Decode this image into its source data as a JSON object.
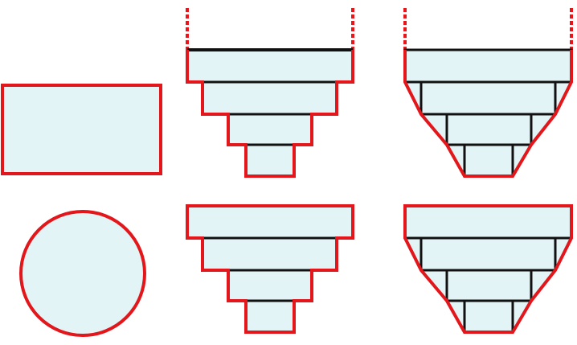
{
  "colors": {
    "fill": "#e2f4f5",
    "outline": "#e3161b",
    "step_line": "#111111",
    "background": "#ffffff"
  },
  "diagram": {
    "panels": [
      {
        "id": "rectangle",
        "shape": "rectangle"
      },
      {
        "id": "circle",
        "shape": "circle"
      },
      {
        "id": "stepped-open-top",
        "shape": "stepped-outline",
        "open_top": true
      },
      {
        "id": "tapered-open-top",
        "shape": "tapered-outline",
        "open_top": true
      },
      {
        "id": "stepped-closed",
        "shape": "stepped-outline",
        "open_top": false
      },
      {
        "id": "tapered-closed",
        "shape": "tapered-outline",
        "open_top": false
      }
    ]
  }
}
